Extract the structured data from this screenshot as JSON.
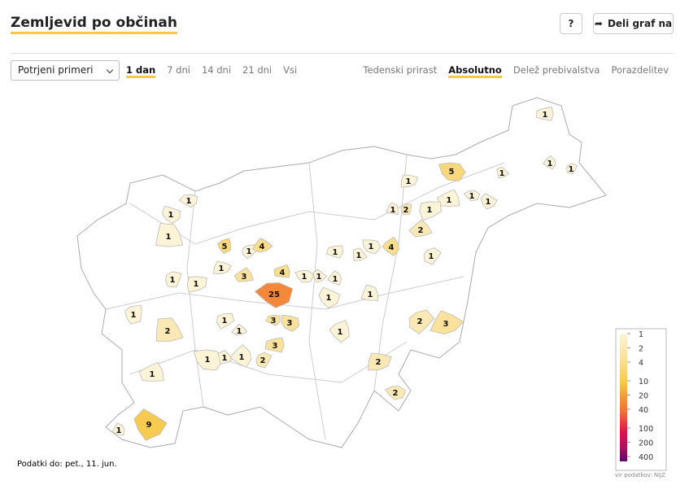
{
  "header": {
    "title": "Zemljevid po občinah",
    "help_button": "?",
    "share_button": "Deli graf na"
  },
  "controls": {
    "select": "Potrjeni primeri",
    "periods": [
      "1 dan",
      "7 dni",
      "14 dni",
      "21 dni",
      "Vsi"
    ],
    "active_period": 0,
    "views": [
      "Tedenski prirast",
      "Absolutno",
      "Delež prebivalstva",
      "Porazdelitev"
    ],
    "active_view": 1
  },
  "map": {
    "municipalities": [
      {
        "value": 1
      },
      {
        "value": 5
      },
      {
        "value": 1
      },
      {
        "value": 1
      },
      {
        "value": 1
      },
      {
        "value": 1
      },
      {
        "value": 1
      },
      {
        "value": 1
      },
      {
        "value": 1
      },
      {
        "value": 1
      },
      {
        "value": 2
      },
      {
        "value": 1
      },
      {
        "value": 2
      },
      {
        "value": 1
      },
      {
        "value": 1
      },
      {
        "value": 1
      },
      {
        "value": 5
      },
      {
        "value": 1
      },
      {
        "value": 4
      },
      {
        "value": 1
      },
      {
        "value": 1
      },
      {
        "value": 1
      },
      {
        "value": 4
      },
      {
        "value": 1
      },
      {
        "value": 1
      },
      {
        "value": 4
      },
      {
        "value": 1
      },
      {
        "value": 1
      },
      {
        "value": 1
      },
      {
        "value": 1
      },
      {
        "value": 1
      },
      {
        "value": 3
      },
      {
        "value": 25
      },
      {
        "value": 1
      },
      {
        "value": 1
      },
      {
        "value": 1
      },
      {
        "value": 1
      },
      {
        "value": 1
      },
      {
        "value": 3
      },
      {
        "value": 3
      },
      {
        "value": 2
      },
      {
        "value": 1
      },
      {
        "value": 2
      },
      {
        "value": 3
      },
      {
        "value": 3
      },
      {
        "value": 1
      },
      {
        "value": 1
      },
      {
        "value": 1
      },
      {
        "value": 2
      },
      {
        "value": 2
      },
      {
        "value": 1
      },
      {
        "value": 2
      },
      {
        "value": 9
      },
      {
        "value": 1
      }
    ]
  },
  "legend": {
    "log": true,
    "stops": [
      {
        "value": 1,
        "color": "#fdf3d6"
      },
      {
        "value": 2,
        "color": "#fbe9b5"
      },
      {
        "value": 4,
        "color": "#f9dd8a"
      },
      {
        "value": 10,
        "color": "#f7c948"
      },
      {
        "value": 20,
        "color": "#f5953a"
      },
      {
        "value": 40,
        "color": "#f26d3a"
      },
      {
        "value": 100,
        "color": "#e0134c"
      },
      {
        "value": 200,
        "color": "#b0105c"
      },
      {
        "value": 400,
        "color": "#5c0a6b"
      }
    ]
  },
  "footer": {
    "date": "Podatki do: pet., 11. jun.",
    "source": "vir podatkov: NIJZ"
  }
}
